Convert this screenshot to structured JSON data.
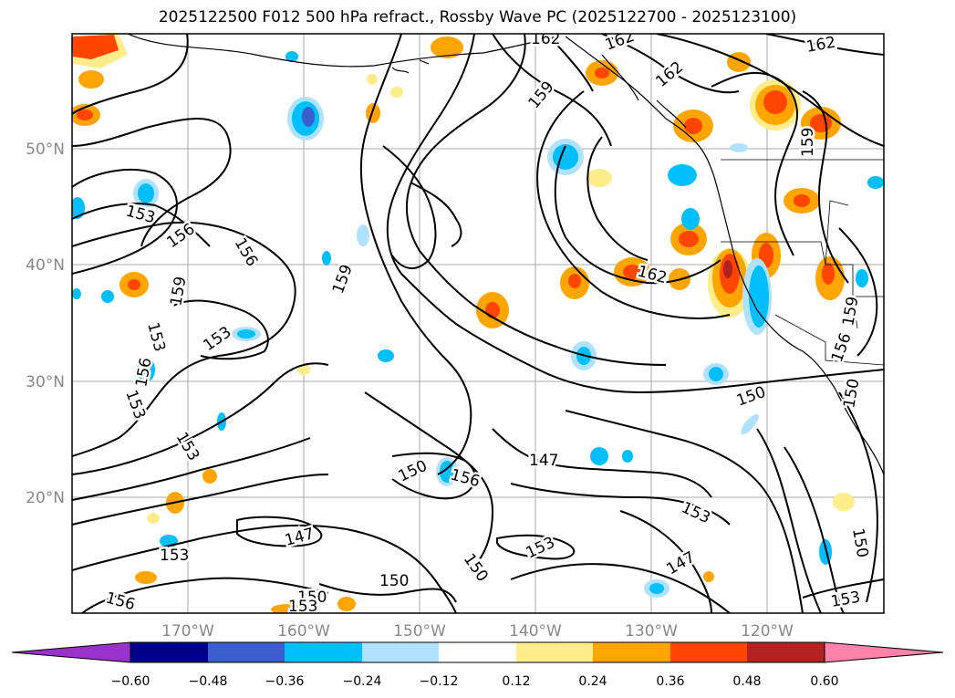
{
  "title": "2025122500 F012 500 hPa refract., Rossby Wave PC (2025122700 - 2025123100)",
  "map": {
    "lat_labels": [
      "20°N",
      "30°N",
      "40°N",
      "50°N"
    ],
    "lon_labels": [
      "170°W",
      "160°W",
      "150°W",
      "140°W",
      "130°W",
      "120°W"
    ],
    "contour_labels": [
      "162",
      "162",
      "159",
      "162",
      "162",
      "159",
      "153",
      "156",
      "156",
      "159",
      "159",
      "153",
      "153",
      "156",
      "153",
      "153",
      "162",
      "150",
      "156",
      "147",
      "150",
      "153",
      "153",
      "147",
      "147",
      "150",
      "153",
      "150",
      "150",
      "156",
      "150",
      "153",
      "153",
      "156",
      "150",
      "159"
    ]
  },
  "colorbar": {
    "ticks": [
      "−0.60",
      "−0.48",
      "−0.36",
      "−0.24",
      "−0.12",
      "0.12",
      "0.24",
      "0.36",
      "0.48",
      "0.60"
    ],
    "colors": [
      "#9932cc",
      "#00008b",
      "#3a5fcd",
      "#00bfff",
      "#b0e2ff",
      "#ffffff",
      "#ffec8b",
      "#ffa500",
      "#ff4500",
      "#b22222",
      "#ff82ab"
    ]
  },
  "colors": {
    "pos_low": "#ffec8b",
    "pos_mid": "#ffa500",
    "pos_high": "#ff4500",
    "neg_low": "#b0e2ff",
    "neg_mid": "#00bfff",
    "neg_high": "#3a5fcd"
  }
}
